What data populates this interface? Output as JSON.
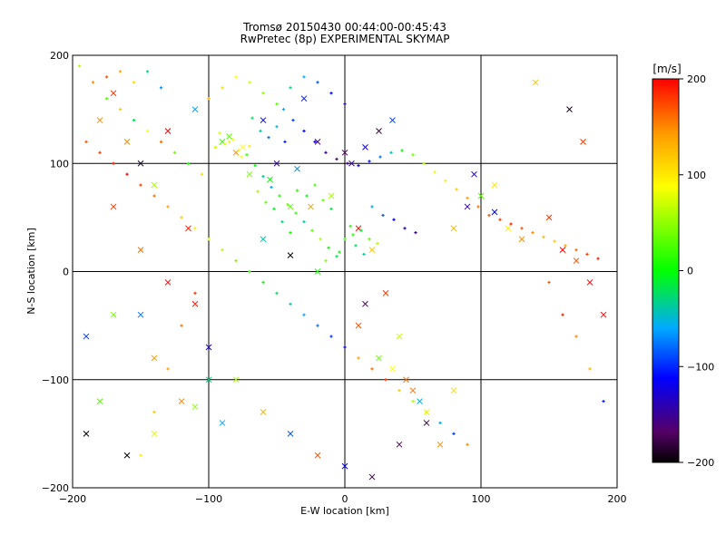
{
  "chart_data": {
    "type": "scatter",
    "title": "Tromsø 20150430 00:44:00-00:45:43",
    "subtitle": "RwPretec (8p) EXPERIMENTAL SKYMAP",
    "xlabel": "E-W location [km]",
    "ylabel": "N-S location [km]",
    "xlim": [
      -200,
      200
    ],
    "ylim": [
      -200,
      200
    ],
    "xticks": [
      -200,
      -100,
      0,
      100,
      200
    ],
    "yticks": [
      -200,
      -100,
      0,
      100,
      200
    ],
    "grid": true,
    "colorbar": {
      "label": "[m/s]",
      "range": [
        -200,
        200
      ],
      "ticks": [
        200,
        100,
        0,
        -100,
        -200
      ],
      "colormap": "rainbow (black-purple-blue-cyan-green-yellow-red)"
    },
    "series": [
      {
        "marker": "cross",
        "points": [
          [
            -170,
            165,
            180
          ],
          [
            -160,
            120,
            150
          ],
          [
            -150,
            100,
            -190
          ],
          [
            -140,
            80,
            60
          ],
          [
            -130,
            130,
            200
          ],
          [
            -110,
            150,
            -60
          ],
          [
            -90,
            120,
            20
          ],
          [
            -80,
            110,
            150
          ],
          [
            -70,
            90,
            40
          ],
          [
            -60,
            140,
            -120
          ],
          [
            -50,
            100,
            -150
          ],
          [
            -40,
            60,
            30
          ],
          [
            -30,
            160,
            -110
          ],
          [
            -20,
            120,
            -160
          ],
          [
            -10,
            70,
            60
          ],
          [
            0,
            110,
            -170
          ],
          [
            10,
            40,
            200
          ],
          [
            20,
            20,
            120
          ],
          [
            30,
            -20,
            180
          ],
          [
            40,
            -60,
            70
          ],
          [
            50,
            -110,
            160
          ],
          [
            60,
            -140,
            -180
          ],
          [
            70,
            -160,
            150
          ],
          [
            80,
            40,
            130
          ],
          [
            90,
            60,
            -150
          ],
          [
            100,
            70,
            30
          ],
          [
            110,
            55,
            -120
          ],
          [
            120,
            40,
            100
          ],
          [
            130,
            30,
            150
          ],
          [
            150,
            50,
            180
          ],
          [
            160,
            20,
            200
          ],
          [
            170,
            10,
            170
          ],
          [
            -180,
            140,
            150
          ],
          [
            -170,
            60,
            180
          ],
          [
            -150,
            20,
            160
          ],
          [
            -130,
            -10,
            200
          ],
          [
            -110,
            -30,
            190
          ],
          [
            -100,
            -70,
            -140
          ],
          [
            -80,
            -100,
            60
          ],
          [
            -60,
            -130,
            130
          ],
          [
            -40,
            -150,
            -90
          ],
          [
            -20,
            -170,
            170
          ],
          [
            0,
            -180,
            -120
          ],
          [
            20,
            -190,
            -180
          ],
          [
            40,
            -160,
            -170
          ],
          [
            60,
            -130,
            80
          ],
          [
            80,
            -110,
            110
          ],
          [
            -190,
            -150,
            -200
          ],
          [
            -160,
            -170,
            -200
          ],
          [
            -140,
            -150,
            80
          ],
          [
            -120,
            -120,
            150
          ],
          [
            -100,
            -100,
            -30
          ],
          [
            -60,
            30,
            -40
          ],
          [
            -40,
            15,
            -200
          ],
          [
            -20,
            0,
            10
          ],
          [
            10,
            -50,
            170
          ],
          [
            15,
            -30,
            -170
          ],
          [
            25,
            -80,
            40
          ],
          [
            35,
            -90,
            90
          ],
          [
            45,
            -100,
            160
          ],
          [
            55,
            -120,
            -50
          ],
          [
            -85,
            125,
            30
          ],
          [
            -75,
            115,
            90
          ],
          [
            -55,
            85,
            0
          ],
          [
            -35,
            95,
            -70
          ],
          [
            -25,
            60,
            140
          ],
          [
            5,
            100,
            -150
          ],
          [
            15,
            115,
            -130
          ],
          [
            25,
            130,
            -180
          ],
          [
            35,
            140,
            -100
          ],
          [
            -190,
            -60,
            -100
          ],
          [
            -180,
            -120,
            30
          ],
          [
            -170,
            -40,
            40
          ],
          [
            -150,
            -40,
            -80
          ],
          [
            -140,
            -80,
            140
          ],
          [
            180,
            -10,
            200
          ],
          [
            190,
            -40,
            200
          ],
          [
            175,
            120,
            180
          ],
          [
            165,
            150,
            -190
          ],
          [
            140,
            175,
            120
          ],
          [
            110,
            80,
            100
          ],
          [
            95,
            90,
            -130
          ],
          [
            -110,
            -125,
            50
          ],
          [
            -90,
            -140,
            -60
          ],
          [
            -115,
            40,
            190
          ]
        ]
      },
      {
        "marker": "plus",
        "points": [
          [
            -195,
            190,
            60
          ],
          [
            -185,
            175,
            150
          ],
          [
            -175,
            160,
            30
          ],
          [
            -165,
            150,
            120
          ],
          [
            -155,
            140,
            -20
          ],
          [
            -145,
            130,
            90
          ],
          [
            -135,
            120,
            160
          ],
          [
            -125,
            110,
            40
          ],
          [
            -115,
            100,
            10
          ],
          [
            -105,
            90,
            110
          ],
          [
            -95,
            115,
            70
          ],
          [
            -85,
            120,
            80
          ],
          [
            -78,
            112,
            100
          ],
          [
            -72,
            108,
            20
          ],
          [
            -66,
            98,
            0
          ],
          [
            -60,
            88,
            -30
          ],
          [
            -54,
            78,
            -60
          ],
          [
            -48,
            70,
            10
          ],
          [
            -42,
            62,
            40
          ],
          [
            -36,
            54,
            20
          ],
          [
            -30,
            46,
            -40
          ],
          [
            -24,
            38,
            30
          ],
          [
            -18,
            30,
            60
          ],
          [
            -12,
            22,
            0
          ],
          [
            -6,
            14,
            -20
          ],
          [
            0,
            30,
            20
          ],
          [
            6,
            34,
            10
          ],
          [
            12,
            38,
            -10
          ],
          [
            18,
            30,
            30
          ],
          [
            24,
            26,
            60
          ],
          [
            -45,
            150,
            -60
          ],
          [
            -38,
            140,
            -100
          ],
          [
            -30,
            130,
            -120
          ],
          [
            -22,
            120,
            -130
          ],
          [
            -14,
            110,
            -150
          ],
          [
            -6,
            104,
            -170
          ],
          [
            2,
            100,
            -160
          ],
          [
            10,
            98,
            -140
          ],
          [
            18,
            102,
            -110
          ],
          [
            26,
            106,
            -80
          ],
          [
            34,
            110,
            -40
          ],
          [
            42,
            112,
            0
          ],
          [
            50,
            108,
            40
          ],
          [
            58,
            100,
            60
          ],
          [
            66,
            92,
            80
          ],
          [
            74,
            84,
            100
          ],
          [
            82,
            76,
            120
          ],
          [
            90,
            68,
            140
          ],
          [
            98,
            60,
            160
          ],
          [
            106,
            52,
            170
          ],
          [
            114,
            48,
            180
          ],
          [
            122,
            44,
            190
          ],
          [
            130,
            40,
            170
          ],
          [
            138,
            36,
            150
          ],
          [
            146,
            32,
            130
          ],
          [
            154,
            28,
            120
          ],
          [
            162,
            24,
            140
          ],
          [
            170,
            20,
            160
          ],
          [
            178,
            16,
            180
          ],
          [
            186,
            12,
            190
          ],
          [
            -190,
            120,
            170
          ],
          [
            -180,
            110,
            180
          ],
          [
            -170,
            100,
            190
          ],
          [
            -160,
            90,
            200
          ],
          [
            -150,
            80,
            180
          ],
          [
            -140,
            70,
            160
          ],
          [
            -130,
            60,
            140
          ],
          [
            -120,
            50,
            120
          ],
          [
            -110,
            40,
            100
          ],
          [
            -100,
            30,
            80
          ],
          [
            -90,
            20,
            60
          ],
          [
            -80,
            10,
            40
          ],
          [
            -70,
            0,
            20
          ],
          [
            -60,
            -10,
            0
          ],
          [
            -50,
            -20,
            -20
          ],
          [
            -40,
            -30,
            -40
          ],
          [
            -30,
            -40,
            -60
          ],
          [
            -20,
            -50,
            -80
          ],
          [
            -10,
            -60,
            -100
          ],
          [
            0,
            -70,
            -120
          ],
          [
            10,
            -80,
            140
          ],
          [
            20,
            -90,
            160
          ],
          [
            30,
            -100,
            180
          ],
          [
            40,
            -110,
            120
          ],
          [
            50,
            -120,
            60
          ],
          [
            60,
            -130,
            100
          ],
          [
            70,
            -140,
            -60
          ],
          [
            80,
            -150,
            -100
          ],
          [
            90,
            -160,
            150
          ],
          [
            -100,
            160,
            130
          ],
          [
            -90,
            170,
            110
          ],
          [
            -80,
            180,
            90
          ],
          [
            -70,
            175,
            70
          ],
          [
            -60,
            165,
            50
          ],
          [
            -50,
            155,
            30
          ],
          [
            -40,
            170,
            -30
          ],
          [
            -30,
            180,
            -60
          ],
          [
            -20,
            175,
            -90
          ],
          [
            -10,
            165,
            -120
          ],
          [
            0,
            155,
            -150
          ],
          [
            -110,
            -20,
            180
          ],
          [
            -120,
            -50,
            160
          ],
          [
            -130,
            -90,
            140
          ],
          [
            -140,
            -130,
            120
          ],
          [
            -150,
            -170,
            100
          ],
          [
            150,
            -10,
            170
          ],
          [
            160,
            -40,
            190
          ],
          [
            170,
            -60,
            150
          ],
          [
            180,
            -90,
            130
          ],
          [
            190,
            -120,
            -110
          ],
          [
            -88,
            118,
            85
          ],
          [
            -82,
            122,
            95
          ],
          [
            -76,
            106,
            90
          ],
          [
            -92,
            128,
            75
          ],
          [
            -70,
            116,
            105
          ],
          [
            -35,
            75,
            15
          ],
          [
            -28,
            70,
            -5
          ],
          [
            -22,
            80,
            25
          ],
          [
            -16,
            66,
            35
          ],
          [
            -10,
            58,
            -15
          ],
          [
            4,
            42,
            15
          ],
          [
            8,
            24,
            -25
          ],
          [
            -4,
            18,
            5
          ],
          [
            -14,
            10,
            45
          ],
          [
            14,
            16,
            -35
          ],
          [
            -58,
            64,
            30
          ],
          [
            -64,
            74,
            55
          ],
          [
            -52,
            58,
            -10
          ],
          [
            -46,
            46,
            -25
          ],
          [
            -40,
            36,
            5
          ],
          [
            -62,
            130,
            -40
          ],
          [
            -56,
            124,
            -80
          ],
          [
            -50,
            134,
            -50
          ],
          [
            -44,
            120,
            -110
          ],
          [
            -68,
            142,
            -20
          ],
          [
            20,
            60,
            -60
          ],
          [
            28,
            52,
            -90
          ],
          [
            36,
            48,
            -120
          ],
          [
            44,
            40,
            -140
          ],
          [
            52,
            36,
            -160
          ],
          [
            -175,
            180,
            170
          ],
          [
            -165,
            185,
            140
          ],
          [
            -155,
            175,
            110
          ],
          [
            -145,
            185,
            -30
          ],
          [
            -135,
            170,
            -70
          ]
        ]
      }
    ]
  }
}
